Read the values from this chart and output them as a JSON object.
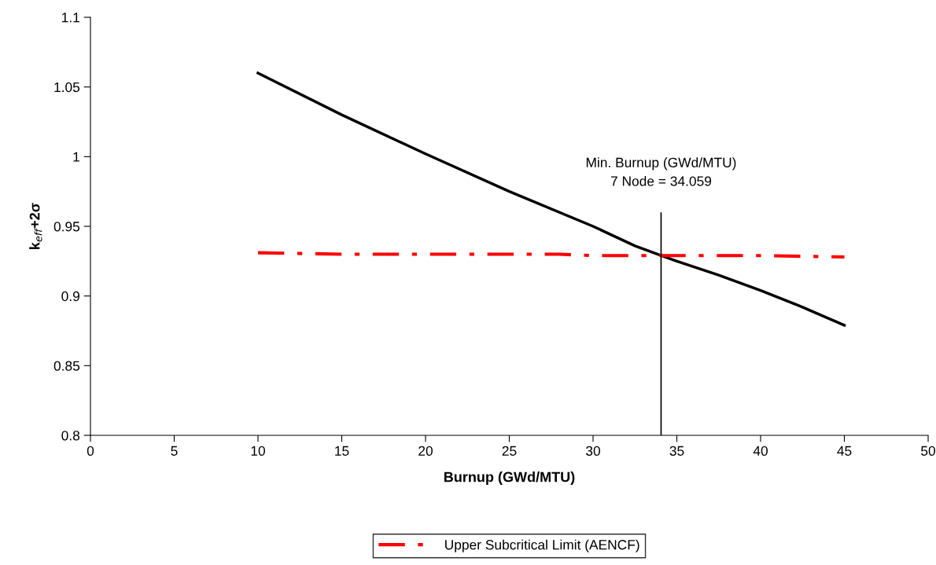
{
  "chart_data": {
    "type": "line",
    "xlabel": "Burnup (GWd/MTU)",
    "ylabel": "k$_{eff}$+2σ",
    "xlim": [
      0,
      50
    ],
    "xticks": [
      0,
      5,
      10,
      15,
      20,
      25,
      30,
      35,
      40,
      45,
      50
    ],
    "ylim": [
      0.8,
      1.1
    ],
    "yticks": [
      0.8,
      0.85,
      0.9,
      0.95,
      1,
      1.05,
      1.1
    ],
    "grid": false,
    "legend": "bottom",
    "marker": "none",
    "series": [
      {
        "color": "#000000",
        "line_style": "solid",
        "x": [
          10,
          15,
          20,
          25,
          30,
          32.5,
          34.059,
          35,
          37.5,
          40,
          42.5,
          45
        ],
        "values": [
          1.06,
          1.03,
          1.002,
          0.975,
          0.95,
          0.936,
          0.929,
          0.925,
          0.915,
          0.904,
          0.892,
          0.879
        ]
      },
      {
        "name": "Upper Subcritical Limit (AENCF)",
        "color": "#ff0000",
        "line_style": "dashed",
        "x": [
          10,
          15,
          20,
          25,
          28,
          30,
          35,
          40,
          45
        ],
        "values": [
          0.931,
          0.93,
          0.93,
          0.93,
          0.93,
          0.929,
          0.929,
          0.929,
          0.928
        ]
      }
    ],
    "ref_lines": [
      {
        "axis": "x",
        "value": 34.059,
        "label": "Min. Burnup (GWd/MTU)\n7 Node = 34.059",
        "color": "#000000"
      }
    ]
  }
}
